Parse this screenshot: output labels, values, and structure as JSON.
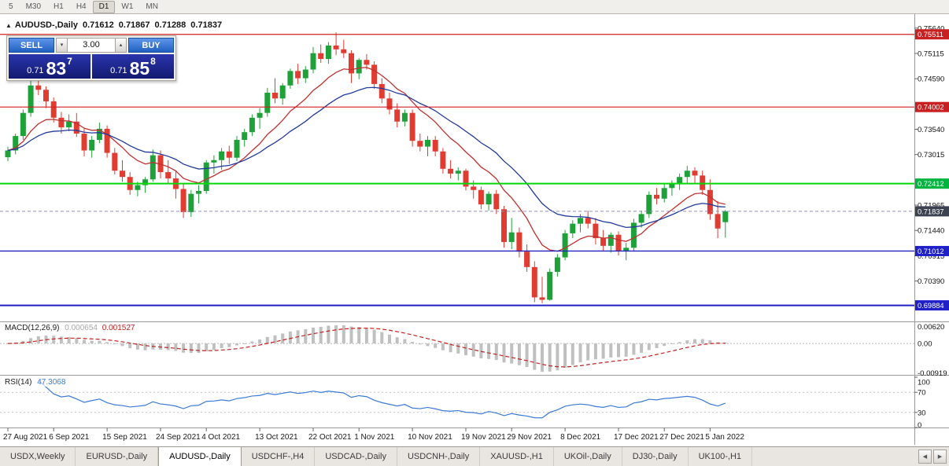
{
  "toolbar": {
    "timeframes": [
      "5",
      "M30",
      "H1",
      "H4",
      "D1",
      "W1",
      "MN"
    ],
    "active": "D1"
  },
  "chart_header": {
    "icon": "▲",
    "symbol": "AUDUSD-,Daily",
    "open": "0.71612",
    "high": "0.71867",
    "low": "0.71288",
    "close": "0.71837"
  },
  "trade_panel": {
    "sell_label": "SELL",
    "buy_label": "BUY",
    "volume": "3.00",
    "vol_down_icon": "▾",
    "vol_up_icon": "▴",
    "sell_price": {
      "prefix": "0.71",
      "big": "83",
      "sup": "7"
    },
    "buy_price": {
      "prefix": "0.71",
      "big": "85",
      "sup": "8"
    }
  },
  "indicators": {
    "macd": {
      "title": "MACD(12,26,9)",
      "value_main": "0.000654",
      "value_signal": "0.001527",
      "axis_top": "0.00620",
      "axis_zero": "0.00",
      "axis_bottom": "-0.00919"
    },
    "rsi": {
      "title": "RSI(14)",
      "value": "47.3068",
      "axis": [
        {
          "value": 100,
          "text": "100"
        },
        {
          "value": 70,
          "text": "70"
        },
        {
          "value": 30,
          "text": "30"
        },
        {
          "value": 0,
          "text": "0"
        }
      ],
      "levels": [
        70,
        30
      ]
    }
  },
  "price_axis": {
    "labels": [
      {
        "price": 0.7564,
        "text": "0.75640"
      },
      {
        "price": 0.75115,
        "text": "0.75115"
      },
      {
        "price": 0.7459,
        "text": "0.74590"
      },
      {
        "price": 0.7354,
        "text": "0.73540"
      },
      {
        "price": 0.73015,
        "text": "0.73015"
      },
      {
        "price": 0.71965,
        "text": "0.71965"
      },
      {
        "price": 0.7144,
        "text": "0.71440"
      },
      {
        "price": 0.70915,
        "text": "0.70915"
      },
      {
        "price": 0.7039,
        "text": "0.70390"
      }
    ],
    "badges": [
      {
        "price": 0.75511,
        "text": "0.75511",
        "color": "#c82020"
      },
      {
        "price": 0.74002,
        "text": "0.74002",
        "color": "#c82020"
      },
      {
        "price": 0.72412,
        "text": "0.72412",
        "color": "#00b440"
      },
      {
        "price": 0.71837,
        "text": "0.71837",
        "color": "#3d4250"
      },
      {
        "price": 0.71012,
        "text": "0.71012",
        "color": "#2020c8"
      },
      {
        "price": 0.69884,
        "text": "0.69884",
        "color": "#2020c8"
      }
    ]
  },
  "chart_data": {
    "type": "candlestick",
    "symbol": "AUDUSD-,Daily",
    "ohlc_current": {
      "open": 0.71612,
      "high": 0.71867,
      "low": 0.71288,
      "close": 0.71837
    },
    "price_range": [
      0.696,
      0.758
    ],
    "current_price": 0.71837,
    "levels": [
      {
        "price": 0.75511,
        "color": "#d02020",
        "width": 1.2
      },
      {
        "price": 0.74002,
        "color": "#d02020",
        "width": 1.2
      },
      {
        "price": 0.72412,
        "color": "#00d800",
        "width": 2
      },
      {
        "price": 0.71012,
        "color": "#2020c0",
        "width": 1.4
      },
      {
        "price": 0.69884,
        "color": "#2020c0",
        "width": 2
      }
    ],
    "colors": {
      "bull": "#1fa13a",
      "bear": "#e03c32",
      "ma_fast": "#c03030",
      "ma_slow": "#223a9c",
      "macd_hist": "#c0c0c0",
      "macd_signal": "#c22222",
      "rsi_line": "#3c7ad6"
    },
    "time_labels": [
      {
        "index": 0,
        "text": "27 Aug 2021"
      },
      {
        "index": 6,
        "text": "6 Sep 2021"
      },
      {
        "index": 13,
        "text": "15 Sep 2021"
      },
      {
        "index": 20,
        "text": "24 Sep 2021"
      },
      {
        "index": 26,
        "text": "4 Oct 2021"
      },
      {
        "index": 33,
        "text": "13 Oct 2021"
      },
      {
        "index": 40,
        "text": "22 Oct 2021"
      },
      {
        "index": 46,
        "text": "1 Nov 2021"
      },
      {
        "index": 53,
        "text": "10 Nov 2021"
      },
      {
        "index": 60,
        "text": "19 Nov 2021"
      },
      {
        "index": 66,
        "text": "29 Nov 2021"
      },
      {
        "index": 73,
        "text": "8 Dec 2021"
      },
      {
        "index": 80,
        "text": "17 Dec 2021"
      },
      {
        "index": 86,
        "text": "27 Dec 2021"
      },
      {
        "index": 92,
        "text": "5 Jan 2022"
      }
    ],
    "candles": [
      [
        0.7296,
        0.7318,
        0.7288,
        0.731
      ],
      [
        0.731,
        0.7345,
        0.7302,
        0.734
      ],
      [
        0.734,
        0.7395,
        0.7332,
        0.7388
      ],
      [
        0.7388,
        0.7455,
        0.738,
        0.7445
      ],
      [
        0.7445,
        0.7478,
        0.7425,
        0.7436
      ],
      [
        0.7436,
        0.7443,
        0.7398,
        0.7412
      ],
      [
        0.7412,
        0.742,
        0.7368,
        0.7378
      ],
      [
        0.7378,
        0.739,
        0.7345,
        0.7358
      ],
      [
        0.7358,
        0.7385,
        0.735,
        0.737
      ],
      [
        0.737,
        0.7388,
        0.7338,
        0.7345
      ],
      [
        0.7345,
        0.7355,
        0.7298,
        0.731
      ],
      [
        0.731,
        0.734,
        0.7295,
        0.7332
      ],
      [
        0.7332,
        0.7368,
        0.7325,
        0.7355
      ],
      [
        0.7355,
        0.7362,
        0.7295,
        0.7305
      ],
      [
        0.7305,
        0.7315,
        0.726,
        0.7268
      ],
      [
        0.7268,
        0.729,
        0.7245,
        0.7255
      ],
      [
        0.7255,
        0.7265,
        0.7218,
        0.7228
      ],
      [
        0.7228,
        0.7245,
        0.7215,
        0.7238
      ],
      [
        0.7238,
        0.7255,
        0.7222,
        0.725
      ],
      [
        0.725,
        0.7312,
        0.7245,
        0.73
      ],
      [
        0.73,
        0.731,
        0.7252,
        0.7265
      ],
      [
        0.7265,
        0.729,
        0.724,
        0.7252
      ],
      [
        0.7252,
        0.7268,
        0.721,
        0.723
      ],
      [
        0.723,
        0.724,
        0.717,
        0.7182
      ],
      [
        0.7182,
        0.7228,
        0.7172,
        0.722
      ],
      [
        0.722,
        0.7238,
        0.72,
        0.7226
      ],
      [
        0.7226,
        0.729,
        0.722,
        0.7285
      ],
      [
        0.7285,
        0.73,
        0.7262,
        0.729
      ],
      [
        0.729,
        0.7315,
        0.727,
        0.7308
      ],
      [
        0.7308,
        0.732,
        0.7282,
        0.7295
      ],
      [
        0.7295,
        0.734,
        0.7288,
        0.7332
      ],
      [
        0.7332,
        0.7355,
        0.7318,
        0.7348
      ],
      [
        0.7348,
        0.7385,
        0.734,
        0.7378
      ],
      [
        0.7378,
        0.7398,
        0.7355,
        0.7388
      ],
      [
        0.7388,
        0.744,
        0.738,
        0.743
      ],
      [
        0.743,
        0.746,
        0.7408,
        0.7418
      ],
      [
        0.7418,
        0.745,
        0.7405,
        0.7445
      ],
      [
        0.7445,
        0.748,
        0.7438,
        0.7475
      ],
      [
        0.7475,
        0.749,
        0.7448,
        0.746
      ],
      [
        0.746,
        0.7485,
        0.745,
        0.7478
      ],
      [
        0.7478,
        0.7525,
        0.747,
        0.7512
      ],
      [
        0.7512,
        0.753,
        0.7492,
        0.75
      ],
      [
        0.75,
        0.7535,
        0.749,
        0.7528
      ],
      [
        0.7528,
        0.7555,
        0.7508,
        0.752
      ],
      [
        0.752,
        0.754,
        0.7502,
        0.7512
      ],
      [
        0.7512,
        0.7518,
        0.745,
        0.747
      ],
      [
        0.747,
        0.7502,
        0.7458,
        0.7498
      ],
      [
        0.7498,
        0.751,
        0.7478,
        0.7488
      ],
      [
        0.7488,
        0.7495,
        0.7438,
        0.7448
      ],
      [
        0.7448,
        0.746,
        0.7408,
        0.7418
      ],
      [
        0.7418,
        0.743,
        0.7385,
        0.7395
      ],
      [
        0.7395,
        0.7408,
        0.7358,
        0.737
      ],
      [
        0.737,
        0.7395,
        0.736,
        0.7388
      ],
      [
        0.7388,
        0.7395,
        0.7318,
        0.733
      ],
      [
        0.733,
        0.7345,
        0.7308,
        0.7318
      ],
      [
        0.7318,
        0.734,
        0.7298,
        0.7332
      ],
      [
        0.7332,
        0.734,
        0.7298,
        0.7308
      ],
      [
        0.7308,
        0.7315,
        0.7262,
        0.7272
      ],
      [
        0.7272,
        0.729,
        0.7252,
        0.7262
      ],
      [
        0.7262,
        0.7275,
        0.7248,
        0.7268
      ],
      [
        0.7268,
        0.7272,
        0.7227,
        0.7235
      ],
      [
        0.7235,
        0.7248,
        0.721,
        0.7228
      ],
      [
        0.7228,
        0.7235,
        0.7188,
        0.7198
      ],
      [
        0.7198,
        0.7225,
        0.7185,
        0.722
      ],
      [
        0.722,
        0.7228,
        0.7178,
        0.7188
      ],
      [
        0.7188,
        0.7195,
        0.7108,
        0.712
      ],
      [
        0.712,
        0.717,
        0.7105,
        0.714
      ],
      [
        0.714,
        0.715,
        0.7088,
        0.71
      ],
      [
        0.71,
        0.7115,
        0.7058,
        0.7068
      ],
      [
        0.7068,
        0.708,
        0.6995,
        0.7005
      ],
      [
        0.7005,
        0.7048,
        0.6993,
        0.7
      ],
      [
        0.7,
        0.7065,
        0.6998,
        0.7058
      ],
      [
        0.7058,
        0.7095,
        0.7048,
        0.7088
      ],
      [
        0.7088,
        0.7145,
        0.7082,
        0.7138
      ],
      [
        0.7138,
        0.7165,
        0.7128,
        0.7158
      ],
      [
        0.7158,
        0.7178,
        0.714,
        0.717
      ],
      [
        0.717,
        0.7185,
        0.7148,
        0.7158
      ],
      [
        0.7158,
        0.717,
        0.7115,
        0.7128
      ],
      [
        0.7128,
        0.7145,
        0.7102,
        0.7112
      ],
      [
        0.7112,
        0.714,
        0.7098,
        0.7135
      ],
      [
        0.7135,
        0.7142,
        0.7092,
        0.7102
      ],
      [
        0.7102,
        0.7118,
        0.7082,
        0.7108
      ],
      [
        0.7108,
        0.7168,
        0.71,
        0.716
      ],
      [
        0.716,
        0.7185,
        0.715,
        0.7178
      ],
      [
        0.7178,
        0.7225,
        0.717,
        0.7218
      ],
      [
        0.7218,
        0.7232,
        0.7198,
        0.721
      ],
      [
        0.721,
        0.724,
        0.7202,
        0.7232
      ],
      [
        0.7232,
        0.7248,
        0.7216,
        0.724
      ],
      [
        0.724,
        0.7262,
        0.7228,
        0.7255
      ],
      [
        0.7255,
        0.7278,
        0.724,
        0.7268
      ],
      [
        0.7268,
        0.7275,
        0.7242,
        0.7258
      ],
      [
        0.7258,
        0.7268,
        0.7218,
        0.7228
      ],
      [
        0.7228,
        0.725,
        0.7166,
        0.7178
      ],
      [
        0.7178,
        0.7205,
        0.7128,
        0.7148
      ],
      [
        0.71612,
        0.71867,
        0.71288,
        0.71837
      ]
    ]
  },
  "tabs": {
    "items": [
      "USDX,Weekly",
      "EURUSD-,Daily",
      "AUDUSD-,Daily",
      "USDCHF-,H4",
      "USDCAD-,Daily",
      "USDCNH-,Daily",
      "XAUUSD-,H1",
      "UKOil-,Daily",
      "DJ30-,Daily",
      "UK100-,H1"
    ],
    "active_index": 2,
    "scroll_left": "◀",
    "scroll_right": "▶"
  }
}
